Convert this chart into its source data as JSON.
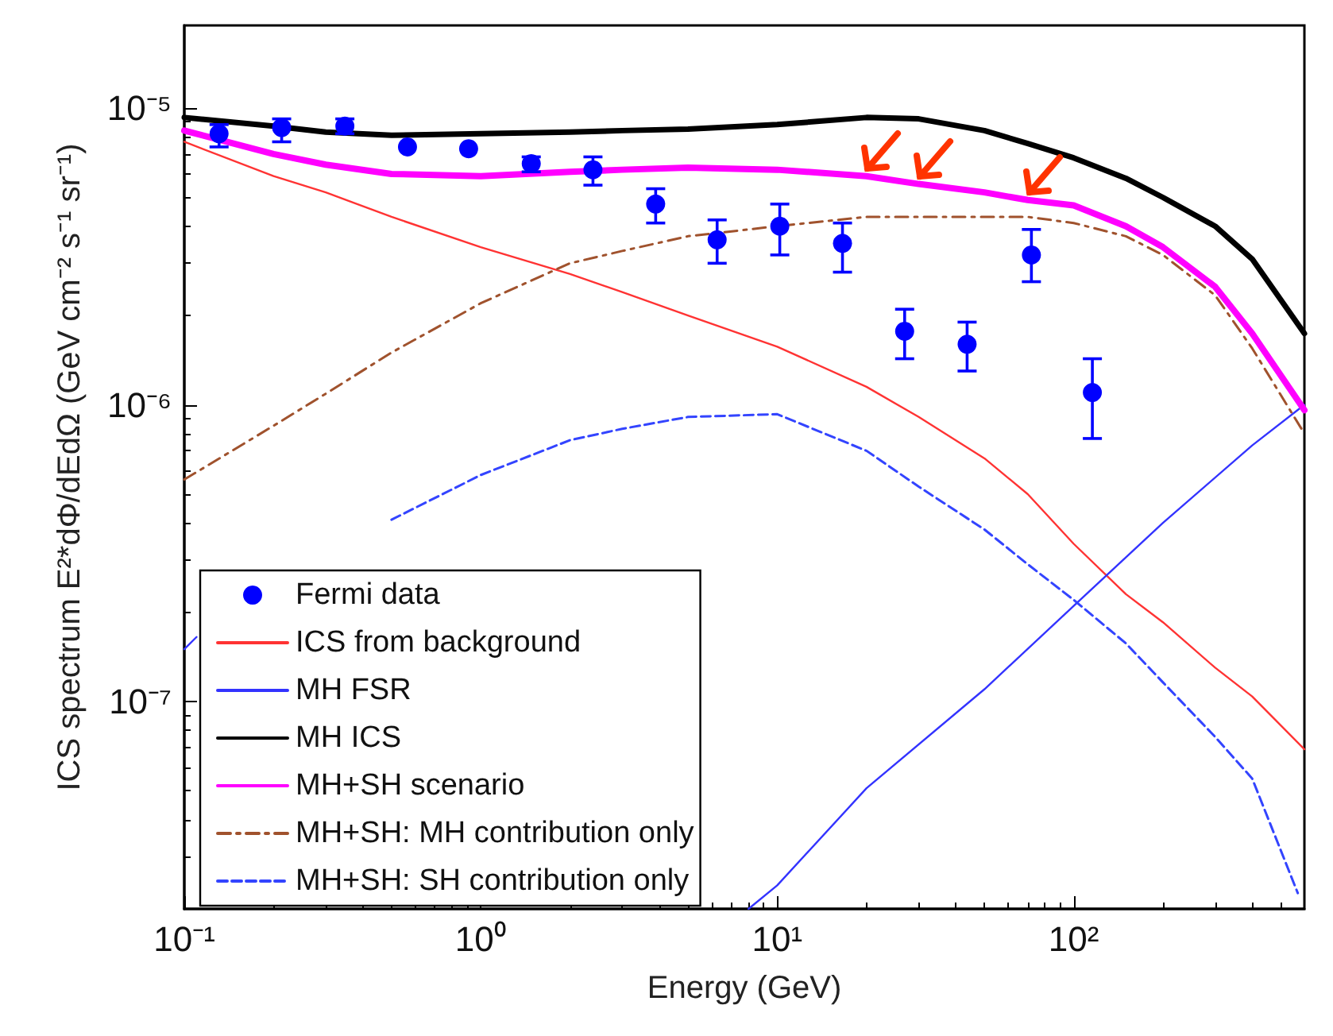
{
  "chart_data": {
    "type": "line",
    "xlabel": "Energy (GeV)",
    "ylabel": "ICS spectrum E²*dΦ/dEdΩ (GeV cm⁻² s⁻¹ sr⁻¹)",
    "log": "xy",
    "grid": false,
    "legend": "bottom left",
    "xlim": [
      0.1,
      600
    ],
    "xticks": [
      {
        "value": 0.1,
        "label": "10⁻¹"
      },
      {
        "value": 1,
        "label": "10⁰"
      },
      {
        "value": 10,
        "label": "10¹"
      },
      {
        "value": 100,
        "label": "10²"
      }
    ],
    "ylim": [
      2e-08,
      1.9e-05
    ],
    "yticks": [
      {
        "value": 1e-07,
        "label": "10⁻⁷"
      },
      {
        "value": 1e-06,
        "label": "10⁻⁶"
      },
      {
        "value": 1e-05,
        "label": "10⁻⁵"
      }
    ],
    "series": [
      {
        "name": "Fermi data",
        "type": "scatter",
        "marker": "circle",
        "color": "#0000ff",
        "x": [
          0.131,
          0.213,
          0.348,
          0.566,
          0.91,
          1.48,
          2.39,
          3.89,
          6.27,
          10.2,
          16.6,
          26.9,
          43.7,
          72,
          115.6
        ],
        "values": [
          8.2e-06,
          8.6e-06,
          8.7e-06,
          7.4e-06,
          7.3e-06,
          6.5e-06,
          6.2e-06,
          4.75e-06,
          3.6e-06,
          4e-06,
          3.5e-06,
          1.77e-06,
          1.6e-06,
          3.2e-06,
          1.1e-06
        ],
        "errors": [
          [
            7.4e-06,
            8.8e-06
          ],
          [
            7.7e-06,
            9.2e-06
          ],
          [
            8.2e-06,
            9.2e-06
          ],
          null,
          null,
          [
            6.1e-06,
            6.85e-06
          ],
          [
            5.5e-06,
            6.85e-06
          ],
          [
            4.1e-06,
            5.35e-06
          ],
          [
            3e-06,
            4.2e-06
          ],
          [
            3.2e-06,
            4.75e-06
          ],
          [
            2.8e-06,
            4.1e-06
          ],
          [
            1.43e-06,
            2.1e-06
          ],
          [
            1.3e-06,
            1.9e-06
          ],
          [
            2.6e-06,
            3.9e-06
          ],
          [
            7.7e-07,
            1.43e-06
          ]
        ]
      },
      {
        "name": "ICS from background",
        "line_style": "solid",
        "color": "#ff3333",
        "x": [
          0.1,
          0.2,
          0.3,
          0.5,
          1,
          2,
          3,
          5,
          10,
          20,
          30,
          50,
          70,
          100,
          150,
          200,
          300,
          400,
          600
        ],
        "values": [
          7.7e-06,
          5.9e-06,
          5.2e-06,
          4.3e-06,
          3.4e-06,
          2.76e-06,
          2.4e-06,
          2e-06,
          1.57e-06,
          1.15e-06,
          9.1e-07,
          6.6e-07,
          5e-07,
          3.4e-07,
          2.3e-07,
          1.85e-07,
          1.3e-07,
          1.04e-07,
          6.9e-08
        ]
      },
      {
        "name": "MH FSR",
        "line_style": "solid",
        "color": "#3333ff",
        "x": [
          0.1,
          0.11,
          0.2,
          8,
          10,
          20,
          50,
          100,
          200,
          400,
          600
        ],
        "values": [
          1.5e-07,
          1.65e-07,
          null,
          2e-08,
          2.4e-08,
          5.1e-08,
          1.1e-07,
          2.1e-07,
          4e-07,
          7.3e-07,
          1e-06
        ]
      },
      {
        "name": "MH ICS",
        "line_style": "solid",
        "color": "#000000",
        "x": [
          0.1,
          0.2,
          0.3,
          0.5,
          1,
          2,
          3,
          5,
          10,
          20,
          30,
          50,
          70,
          100,
          150,
          200,
          300,
          400,
          600
        ],
        "values": [
          9.3e-06,
          8.7e-06,
          8.3e-06,
          8.1e-06,
          8.2e-06,
          8.3e-06,
          8.4e-06,
          8.5e-06,
          8.8e-06,
          9.3e-06,
          9.2e-06,
          8.4e-06,
          7.6e-06,
          6.8e-06,
          5.8e-06,
          5e-06,
          4e-06,
          3.1e-06,
          1.74e-06
        ]
      },
      {
        "name": "MH+SH scenario",
        "line_style": "solid",
        "color": "#ff00ff",
        "x": [
          0.1,
          0.2,
          0.3,
          0.5,
          1,
          2,
          3,
          5,
          10,
          20,
          30,
          50,
          70,
          100,
          150,
          200,
          300,
          400,
          600
        ],
        "values": [
          8.4e-06,
          7e-06,
          6.45e-06,
          6e-06,
          5.9e-06,
          6.1e-06,
          6.2e-06,
          6.3e-06,
          6.2e-06,
          5.9e-06,
          5.55e-06,
          5.2e-06,
          4.9e-06,
          4.7e-06,
          4e-06,
          3.4e-06,
          2.5e-06,
          1.74e-06,
          9.6e-07
        ]
      },
      {
        "name": "MH+SH: MH contribution only",
        "line_style": "dashdot",
        "color": "#a0522d",
        "x": [
          0.1,
          0.2,
          0.3,
          0.5,
          1,
          2,
          3,
          5,
          10,
          20,
          30,
          50,
          70,
          100,
          150,
          200,
          300,
          400,
          600
        ],
        "values": [
          5.6e-07,
          8.5e-07,
          1.09e-06,
          1.5e-06,
          2.2e-06,
          3e-06,
          3.3e-06,
          3.7e-06,
          4e-06,
          4.3e-06,
          4.3e-06,
          4.3e-06,
          4.3e-06,
          4.1e-06,
          3.7e-06,
          3.2e-06,
          2.34e-06,
          1.55e-06,
          8e-07
        ]
      },
      {
        "name": "MH+SH: SH contribution only",
        "line_style": "dashed",
        "color": "#3344ff",
        "x": [
          0.5,
          1,
          2,
          3,
          5,
          10,
          20,
          30,
          50,
          70,
          100,
          150,
          200,
          300,
          400,
          570
        ],
        "values": [
          4.1e-07,
          5.8e-07,
          7.6e-07,
          8.3e-07,
          9.1e-07,
          9.3e-07,
          7e-07,
          5.3e-07,
          3.8e-07,
          2.9e-07,
          2.2e-07,
          1.57e-07,
          1.16e-07,
          7.6e-08,
          5.5e-08,
          2.26e-08
        ]
      }
    ]
  }
}
